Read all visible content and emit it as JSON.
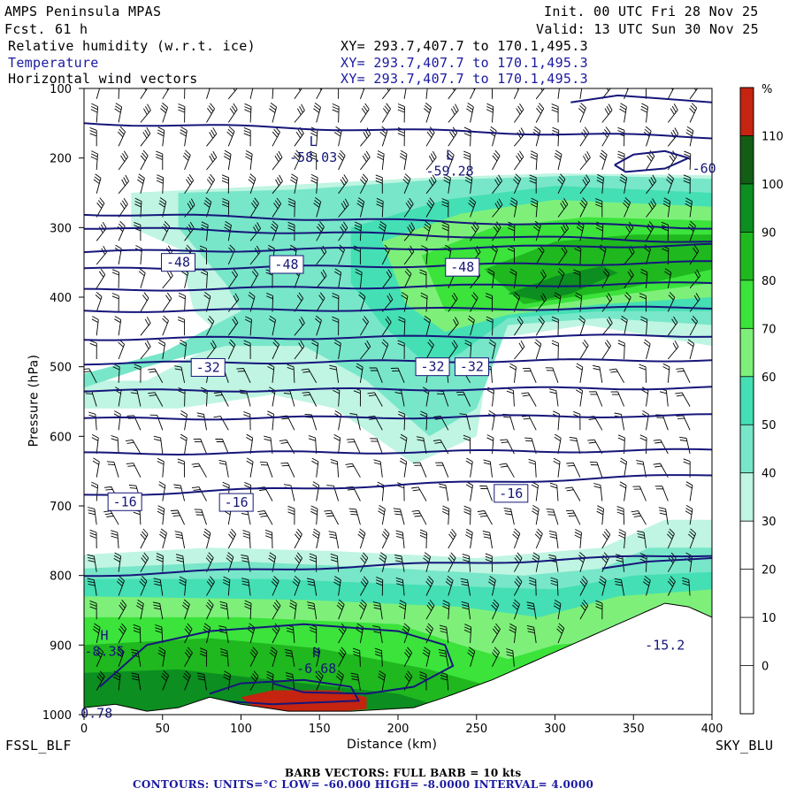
{
  "header": {
    "model": "AMPS Peninsula MPAS",
    "fcst_label": "Fcst.",
    "fcst_hours": "61 h",
    "init": "Init. 00 UTC Fri 28 Nov 25",
    "valid": "Valid: 13 UTC Sun 30 Nov 25",
    "field1": "Relative humidity (w.r.t. ice)",
    "field2": "Temperature",
    "field3": "Horizontal wind vectors",
    "xy1": "XY= 293.7,407.7 to 170.1,495.3",
    "xy2": "XY= 293.7,407.7 to 170.1,495.3",
    "xy3": "XY= 293.7,407.7 to 170.1,495.3"
  },
  "footer": {
    "start_station": "FSSL_BLF",
    "end_station": "SKY_BLU",
    "barb_note": "BARB VECTORS:  FULL BARB = 10 kts",
    "contour_note": "CONTOURS:  UNITS=°C  LOW= -60.000     HIGH= -8.0000     INTERVAL=    4.0000"
  },
  "colors": {
    "contour": "#16167a",
    "rh_30_40": "#bff5e2",
    "rh_40_50": "#78e6c9",
    "rh_50_60": "#44dfb4",
    "rh_60_70": "#7ef07a",
    "rh_70_80": "#3be33b",
    "rh_80_90": "#1fb81f",
    "rh_90_100": "#0c8e20",
    "rh_100_110": "#125e14",
    "rh_110_plus": "#c42410"
  },
  "chart_data": {
    "type": "heatmap",
    "title": "Relative humidity (w.r.t. ice), Temperature, Horizontal wind vectors",
    "xlabel": "Distance (km)",
    "ylabel": "Pressure (hPa)",
    "x_ticks": [
      0,
      50,
      100,
      150,
      200,
      250,
      300,
      350,
      400
    ],
    "y_ticks": [
      100,
      200,
      300,
      400,
      500,
      600,
      700,
      800,
      900,
      1000
    ],
    "xlim": [
      0,
      400
    ],
    "ylim": [
      1000,
      100
    ],
    "colorbar": {
      "unit": "%",
      "tick_labels": [
        "110",
        "100",
        "90",
        "80",
        "70",
        "60",
        "50",
        "40",
        "30",
        "20",
        "10",
        "0"
      ],
      "levels": [
        -10,
        0,
        10,
        20,
        30,
        40,
        50,
        60,
        70,
        80,
        90,
        100,
        110,
        120
      ],
      "colors": [
        "#ffffff",
        "#ffffff",
        "#ffffff",
        "#ffffff",
        "#bff5e2",
        "#78e6c9",
        "#44dfb4",
        "#7ef07a",
        "#3be33b",
        "#1fb81f",
        "#0c8e20",
        "#125e14",
        "#c42410"
      ]
    },
    "contour_labels": [
      {
        "text": "-48",
        "x": 60,
        "p": 350
      },
      {
        "text": "-48",
        "x": 129,
        "p": 353
      },
      {
        "text": "-48",
        "x": 241,
        "p": 357
      },
      {
        "text": "-32",
        "x": 79,
        "p": 501
      },
      {
        "text": "-32",
        "x": 222,
        "p": 500
      },
      {
        "text": "-32",
        "x": 247,
        "p": 500
      },
      {
        "text": "-16",
        "x": 26,
        "p": 694
      },
      {
        "text": "-16",
        "x": 97,
        "p": 695
      },
      {
        "text": "-16",
        "x": 272,
        "p": 682
      }
    ],
    "extrema": [
      {
        "kind": "L",
        "value": "-58.03",
        "x": 146,
        "p": 190
      },
      {
        "kind": "L",
        "value": "-59.28",
        "x": 233,
        "p": 210
      },
      {
        "kind": "H",
        "value": "-8.35",
        "x": 13,
        "p": 900
      },
      {
        "kind": "H",
        "value": "-6.68",
        "x": 148,
        "p": 925
      }
    ],
    "partial_labels": [
      "-60",
      "-15.2",
      "0.78"
    ]
  }
}
